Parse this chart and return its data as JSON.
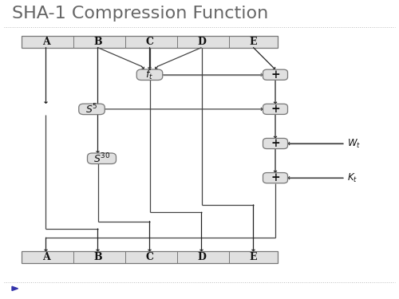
{
  "title": "SHA-1 Compression Function",
  "title_fontsize": 16,
  "title_color": "#666666",
  "bg_color": "#ffffff",
  "box_bg": "#e0e0e0",
  "box_edge": "#777777",
  "arrow_color": "#222222",
  "line_color": "#444444",
  "ft_line_color": "#777777",
  "top_labels": [
    "A",
    "B",
    "C",
    "D",
    "E"
  ],
  "bottom_labels": [
    "A",
    "B",
    "C",
    "D",
    "E"
  ]
}
